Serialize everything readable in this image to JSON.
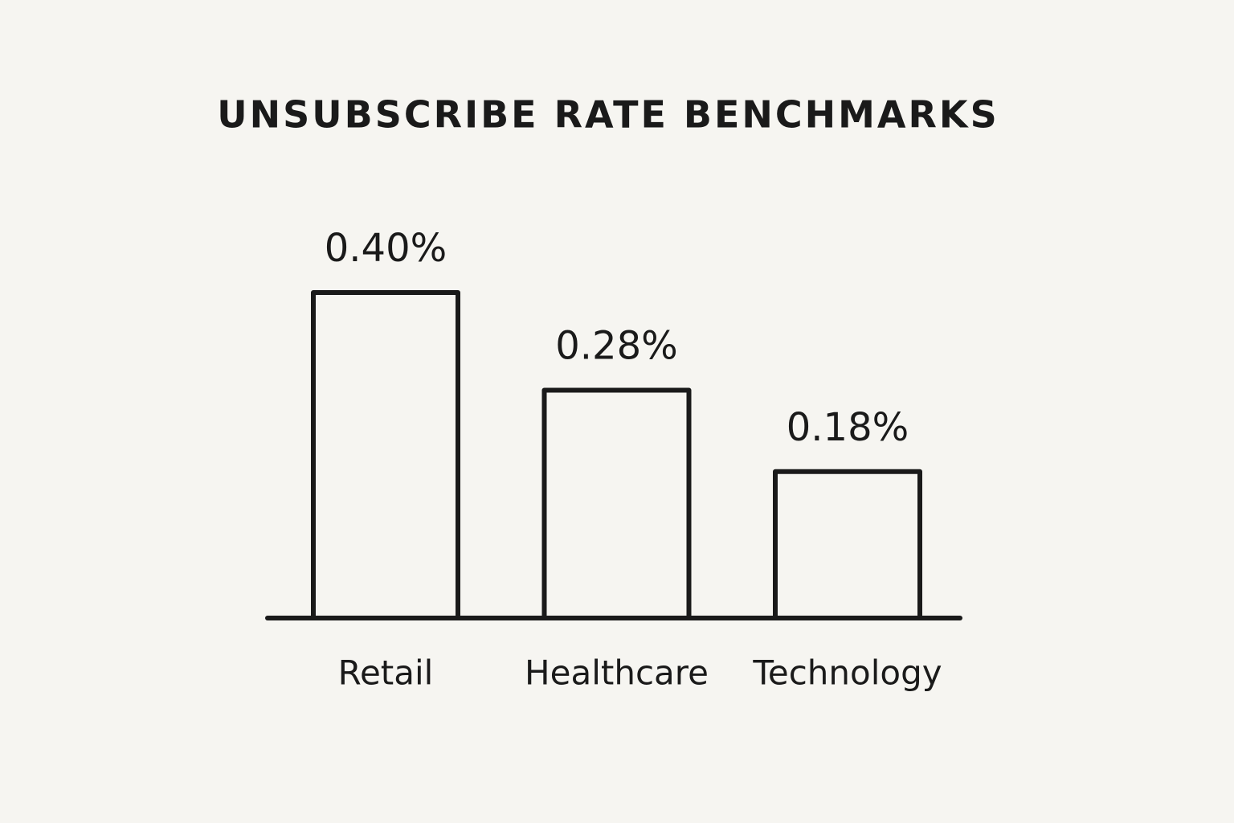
{
  "chart_data": {
    "type": "bar",
    "title": "UNSUBSCRIBE RATE BENCHMARKS",
    "categories": [
      "Retail",
      "Healthcare",
      "Technology"
    ],
    "values": [
      0.4,
      0.28,
      0.18
    ],
    "value_labels": [
      "0.40%",
      "0.28%",
      "0.18%"
    ],
    "color": "#1a1a1a"
  }
}
